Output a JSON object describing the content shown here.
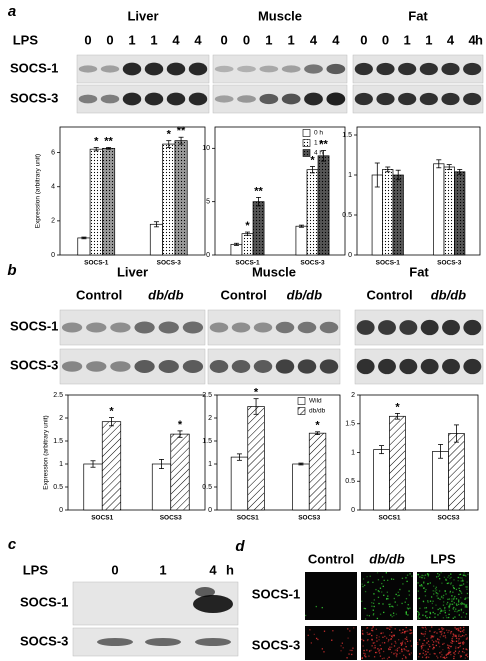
{
  "figure": {
    "panel_a": {
      "label": "a",
      "titles": [
        "Liver",
        "Muscle",
        "Fat"
      ],
      "lps_label": "LPS",
      "lanes": [
        [
          "0",
          "0",
          "1",
          "1",
          "4",
          "4"
        ],
        [
          "0",
          "0",
          "1",
          "1",
          "4",
          "4"
        ],
        [
          "0",
          "0",
          "1",
          "1",
          "4",
          "4"
        ]
      ],
      "unit": "h",
      "rows": [
        "SOCS-1",
        "SOCS-3"
      ]
    },
    "panel_b": {
      "label": "b",
      "titles": [
        "Liver",
        "Muscle",
        "Fat"
      ],
      "groups": [
        [
          "Control",
          "db/db"
        ],
        [
          "Control",
          "db/db"
        ],
        [
          "Control",
          "db/db"
        ]
      ],
      "rows": [
        "SOCS-1",
        "SOCS-3"
      ]
    },
    "panel_c": {
      "label": "c",
      "lps_label": "LPS",
      "lanes": [
        "0",
        "1",
        "4"
      ],
      "unit": "h",
      "rows": [
        "SOCS-1",
        "SOCS-3"
      ]
    },
    "panel_d": {
      "label": "d",
      "columns": [
        "Control",
        "db/db",
        "LPS"
      ],
      "rows": [
        "SOCS-1",
        "SOCS-3"
      ]
    }
  },
  "chart_data": [
    {
      "type": "bar",
      "y_label": "Expression (arbitrary unit)",
      "categories": [
        "SOCS-1",
        "SOCS-3"
      ],
      "ylim": [
        0,
        7.5
      ],
      "yticks": [
        0,
        2,
        4,
        6
      ],
      "series": [
        {
          "pattern": "solid",
          "color": "#ffffff",
          "values": [
            1.0,
            1.8
          ],
          "errors": [
            0.05,
            0.15
          ]
        },
        {
          "pattern": "dots",
          "color": "#ffffff",
          "values": [
            6.2,
            6.5
          ],
          "errors": [
            0.1,
            0.2
          ],
          "annotations": [
            "*",
            "*"
          ]
        },
        {
          "pattern": "dots",
          "color": "#9a9a9a",
          "values": [
            6.25,
            6.7
          ],
          "errors": [
            0.05,
            0.2
          ],
          "annotations": [
            "**",
            "**"
          ]
        }
      ]
    },
    {
      "type": "bar",
      "categories": [
        "SOCS-1",
        "SOCS-3"
      ],
      "ylim": [
        0,
        12
      ],
      "yticks": [
        0,
        5,
        10
      ],
      "legend": "upper right",
      "series": [
        {
          "name": "0 h",
          "pattern": "solid",
          "color": "#ffffff",
          "values": [
            1.0,
            2.7
          ],
          "errors": [
            0.1,
            0.1
          ]
        },
        {
          "name": "1 h",
          "pattern": "dots",
          "color": "#ffffff",
          "values": [
            2.0,
            8.0
          ],
          "errors": [
            0.15,
            0.3
          ],
          "annotations": [
            "*",
            "*"
          ]
        },
        {
          "name": "4 h",
          "pattern": "dots",
          "color": "#555555",
          "values": [
            5.0,
            9.3
          ],
          "errors": [
            0.4,
            0.5
          ],
          "annotations": [
            "**",
            "**"
          ]
        }
      ]
    },
    {
      "type": "bar",
      "categories": [
        "SOCS-1",
        "SOCS-3"
      ],
      "ylim": [
        0,
        1.6
      ],
      "yticks": [
        0,
        0.5,
        1,
        1.5
      ],
      "series": [
        {
          "pattern": "solid",
          "color": "#ffffff",
          "values": [
            1.0,
            1.14
          ],
          "errors": [
            0.15,
            0.05
          ]
        },
        {
          "pattern": "dots",
          "color": "#ffffff",
          "values": [
            1.07,
            1.1
          ],
          "errors": [
            0.03,
            0.03
          ]
        },
        {
          "pattern": "dots",
          "color": "#555555",
          "values": [
            1.0,
            1.04
          ],
          "errors": [
            0.06,
            0.03
          ]
        }
      ]
    },
    {
      "type": "bar",
      "y_label": "Expression (arbitrary unit)",
      "categories": [
        "SOCS1",
        "SOCS3"
      ],
      "ylim": [
        0,
        2.5
      ],
      "yticks": [
        0,
        0.5,
        1,
        1.5,
        2,
        2.5
      ],
      "series": [
        {
          "pattern": "solid",
          "color": "#ffffff",
          "values": [
            1.0,
            1.0
          ],
          "errors": [
            0.07,
            0.1
          ]
        },
        {
          "pattern": "hatch",
          "color": "#ffffff",
          "values": [
            1.92,
            1.65
          ],
          "errors": [
            0.09,
            0.07
          ],
          "annotations": [
            "*",
            "*"
          ]
        }
      ]
    },
    {
      "type": "bar",
      "categories": [
        "SOCS1",
        "SOCS3"
      ],
      "ylim": [
        0,
        2.5
      ],
      "yticks": [
        0,
        0.5,
        1,
        1.5,
        2,
        2.5
      ],
      "legend": "upper right",
      "series": [
        {
          "name": "Wild",
          "pattern": "solid",
          "color": "#ffffff",
          "values": [
            1.15,
            1.0
          ],
          "errors": [
            0.07,
            0.02
          ]
        },
        {
          "name": "db/db",
          "pattern": "hatch",
          "color": "#ffffff",
          "values": [
            2.25,
            1.67
          ],
          "errors": [
            0.17,
            0.03
          ],
          "annotations": [
            "*",
            "*"
          ]
        }
      ]
    },
    {
      "type": "bar",
      "categories": [
        "SOCS1",
        "SOCS3"
      ],
      "ylim": [
        0,
        2
      ],
      "yticks": [
        0,
        0.5,
        1,
        1.5,
        2
      ],
      "series": [
        {
          "pattern": "solid",
          "color": "#ffffff",
          "values": [
            1.05,
            1.02
          ],
          "errors": [
            0.07,
            0.12
          ]
        },
        {
          "pattern": "hatch",
          "color": "#ffffff",
          "values": [
            1.63,
            1.33
          ],
          "errors": [
            0.05,
            0.15
          ],
          "annotations": [
            "*",
            null
          ]
        }
      ]
    }
  ]
}
